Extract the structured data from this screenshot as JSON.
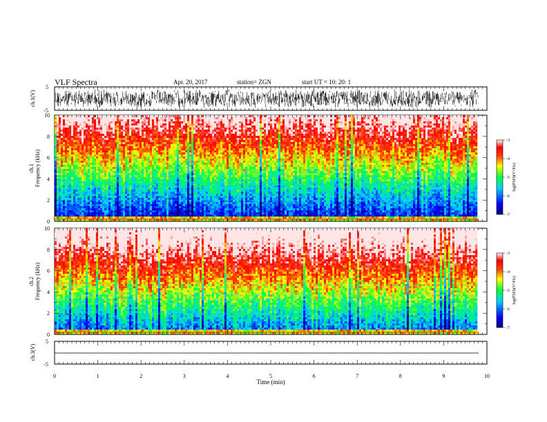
{
  "header": {
    "title": "VLF Spectra",
    "date": "Apr. 20, 2017",
    "station": "station= ZGN",
    "start": "start  UT =   10: 20: 1"
  },
  "chart_data": [
    {
      "type": "line",
      "panel": "ch1-waveform",
      "ylabel": "ch.1(V)",
      "ylim": [
        -5,
        5
      ],
      "yticks": [
        "5",
        "-5"
      ],
      "xlim": [
        0,
        10
      ]
    },
    {
      "type": "heatmap",
      "panel": "ch1-spectrogram",
      "ylabel_line1": "ch.1",
      "ylabel_line2": "Frequency (kHz)",
      "ylim": [
        0,
        10
      ],
      "yticks": [
        "10",
        "8",
        "6",
        "4",
        "2",
        "0"
      ],
      "xlim": [
        0,
        10
      ],
      "colorbar": {
        "label": "log(PSD)(V²/Hz)",
        "range": [
          -7,
          -3
        ],
        "ticks": [
          "-3",
          "-4",
          "-5",
          "-6",
          "-7"
        ]
      }
    },
    {
      "type": "heatmap",
      "panel": "ch2-spectrogram",
      "ylabel_line1": "ch.2",
      "ylabel_line2": "Frequency (kHz)",
      "ylim": [
        0,
        10
      ],
      "yticks": [
        "10",
        "8",
        "6",
        "4",
        "2",
        "0"
      ],
      "xlim": [
        0,
        10
      ],
      "colorbar": {
        "label": "log(PSD)(V²/Hz)",
        "range": [
          -7,
          -3
        ],
        "ticks": [
          "-3",
          "-4",
          "-5",
          "-6",
          "-7"
        ]
      }
    },
    {
      "type": "line",
      "panel": "ch3-waveform",
      "ylabel": "ch.3(V)",
      "ylim": [
        -5,
        5
      ],
      "yticks": [
        "5",
        "-5"
      ],
      "xlim": [
        0,
        10
      ],
      "xlabel": "Time (min)",
      "xticks": [
        "0",
        "1",
        "2",
        "3",
        "4",
        "5",
        "6",
        "7",
        "8",
        "9",
        "10"
      ]
    }
  ]
}
